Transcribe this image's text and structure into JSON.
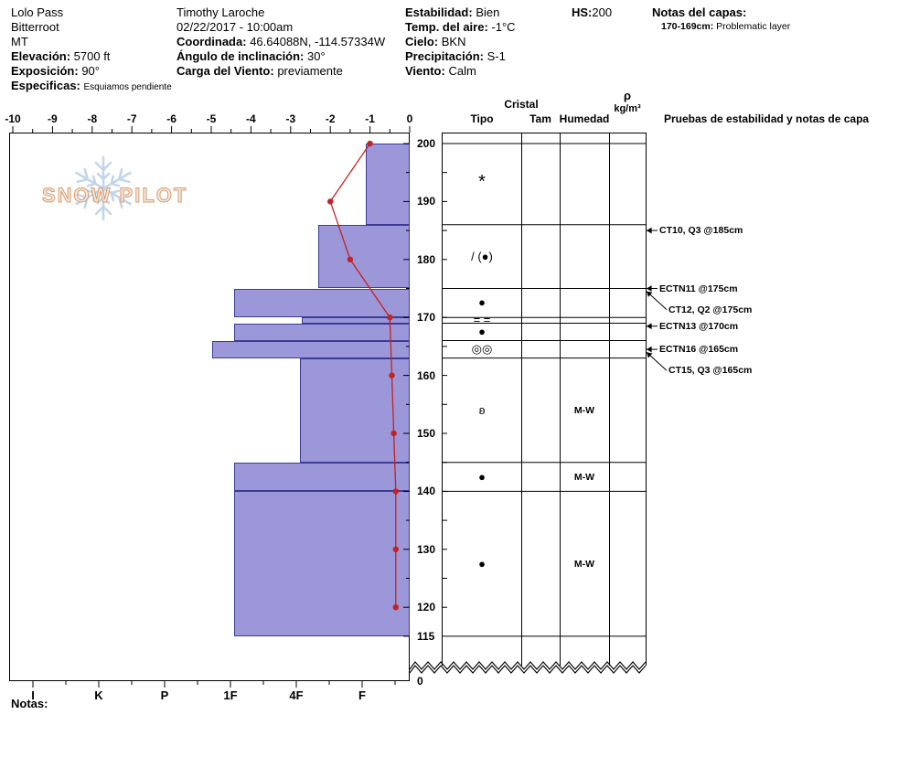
{
  "watermark": "SNOW PILOT",
  "notes_label": "Notas:",
  "header": {
    "site": {
      "name": "Lolo Pass",
      "range": "Bitterroot",
      "state": "MT"
    },
    "elevation": {
      "label": "Elevación:",
      "value": "5700 ft"
    },
    "aspect": {
      "label": "Exposición:",
      "value": "90°"
    },
    "specifics": {
      "label": "Especificas:",
      "value": "Esquiamos pendiente"
    },
    "observer": {
      "name": "Timothy Laroche",
      "datetime": "02/22/2017 - 10:00am"
    },
    "coordinates": {
      "label": "Coordinada:",
      "value": "46.64088N, -114.57334W"
    },
    "slope_angle": {
      "label": "Ángulo de inclinación:",
      "value": "30°"
    },
    "wind_loading": {
      "label": "Carga del Viento:",
      "value": "previamente"
    },
    "stability": {
      "label": "Estabilidad:",
      "value": "Bien"
    },
    "air_temp": {
      "label": "Temp. del aire:",
      "value": "-1°C"
    },
    "sky": {
      "label": "Cielo:",
      "value": "BKN"
    },
    "precip": {
      "label": "Precipitación:",
      "value": "S-1"
    },
    "wind": {
      "label": "Viento:",
      "value": "Calm"
    },
    "hs": {
      "label": "HS:",
      "value": "200"
    },
    "layer_notes": {
      "label": "Notas del capas:",
      "entry_label": "170-169cm:",
      "entry_text": "Problematic layer"
    }
  },
  "columns": {
    "cristal": "Cristal",
    "tipo": "Tipo",
    "tam": "Tam",
    "humedad": "Humedad",
    "rho": "ρ",
    "rho_units": "kg/m³",
    "tests_header": "Pruebas de estabilidad y notas de capa"
  },
  "colors": {
    "layer_fill": "#9b97d8",
    "layer_border": "#3c3c96",
    "temp_line": "#c52222",
    "watermark_blue": "#bdd2e6",
    "watermark_text_fill": "#e9e9e9",
    "watermark_text_outline": "#e2955a"
  },
  "chart_data": [
    {
      "type": "bar",
      "orientation": "horizontal",
      "xlabel_categories": [
        "I",
        "K",
        "P",
        "1F",
        "4F",
        "F"
      ],
      "depth_axis_labels": [
        200,
        190,
        180,
        170,
        160,
        150,
        140,
        130,
        120,
        115
      ],
      "depth_bottom_label": "0",
      "ylim": [
        115,
        200
      ],
      "total_snow_height_cm": 200,
      "layers": [
        {
          "top_cm": 200,
          "bottom_cm": 186,
          "hardness": "F",
          "hardness_index": 0.94
        },
        {
          "top_cm": 186,
          "bottom_cm": 175,
          "hardness": "4F-F",
          "hardness_index": 1.67
        },
        {
          "top_cm": 175,
          "bottom_cm": 170,
          "hardness": "1F",
          "hardness_index": 2.94
        },
        {
          "top_cm": 170,
          "bottom_cm": 169,
          "hardness": "4F",
          "hardness_index": 1.92
        },
        {
          "top_cm": 169,
          "bottom_cm": 166,
          "hardness": "1F",
          "hardness_index": 2.94
        },
        {
          "top_cm": 166,
          "bottom_cm": 163,
          "hardness": "1F+",
          "hardness_index": 3.28
        },
        {
          "top_cm": 163,
          "bottom_cm": 145,
          "hardness": "4F",
          "hardness_index": 1.94
        },
        {
          "top_cm": 145,
          "bottom_cm": 140,
          "hardness": "1F",
          "hardness_index": 2.94
        },
        {
          "top_cm": 140,
          "bottom_cm": 115,
          "hardness": "1F",
          "hardness_index": 2.94
        }
      ],
      "annotations": [
        {
          "label": "CT10, Q3 @185cm",
          "arrow_depth_cm": 185,
          "text_dy": 0
        },
        {
          "label": "ECTN11 @175cm",
          "arrow_depth_cm": 175,
          "text_dy": 0
        },
        {
          "label": "CT12, Q2 @175cm",
          "arrow_depth_cm": 174.5,
          "text_dy": 20
        },
        {
          "label": "ECTN13 @170cm",
          "arrow_depth_cm": 168.5,
          "text_dy": 0
        },
        {
          "label": "ECTN16 @165cm",
          "arrow_depth_cm": 164.5,
          "text_dy": 0
        },
        {
          "label": "CT15, Q3 @165cm",
          "arrow_depth_cm": 164,
          "text_dy": 20
        }
      ]
    },
    {
      "type": "line",
      "xlabel_ticks": [
        -10,
        -9,
        -8,
        -7,
        -6,
        -5,
        -4,
        -3,
        -2,
        -1,
        0
      ],
      "xlim": [
        -10,
        0
      ],
      "points": [
        {
          "temp_c": -1.0,
          "depth_cm": 200
        },
        {
          "temp_c": -2.0,
          "depth_cm": 190
        },
        {
          "temp_c": -1.5,
          "depth_cm": 180
        },
        {
          "temp_c": -0.5,
          "depth_cm": 170
        },
        {
          "temp_c": -0.45,
          "depth_cm": 160
        },
        {
          "temp_c": -0.4,
          "depth_cm": 150
        },
        {
          "temp_c": -0.35,
          "depth_cm": 140
        },
        {
          "temp_c": -0.35,
          "depth_cm": 130
        },
        {
          "temp_c": -0.35,
          "depth_cm": 120
        }
      ]
    },
    {
      "type": "table",
      "rows": [
        {
          "from_cm": 200,
          "to_cm": 186,
          "crystal_symbol": "*",
          "tam": "",
          "humidity": ""
        },
        {
          "from_cm": 186,
          "to_cm": 175,
          "crystal_symbol": "/ (●)",
          "tam": "",
          "humidity": ""
        },
        {
          "from_cm": 175,
          "to_cm": 170,
          "crystal_symbol": "●",
          "tam": "",
          "humidity": ""
        },
        {
          "from_cm": 170,
          "to_cm": 169,
          "crystal_symbol": "= =",
          "tam": "",
          "humidity": ""
        },
        {
          "from_cm": 169,
          "to_cm": 166,
          "crystal_symbol": "●",
          "tam": "",
          "humidity": ""
        },
        {
          "from_cm": 166,
          "to_cm": 163,
          "crystal_symbol": "◎◎",
          "tam": "",
          "humidity": ""
        },
        {
          "from_cm": 163,
          "to_cm": 145,
          "crystal_symbol": "ʚ",
          "tam": "",
          "humidity": "M-W"
        },
        {
          "from_cm": 145,
          "to_cm": 140,
          "crystal_symbol": "●",
          "tam": "",
          "humidity": "M-W"
        },
        {
          "from_cm": 140,
          "to_cm": 115,
          "crystal_symbol": "●",
          "tam": "",
          "humidity": "M-W"
        }
      ]
    }
  ]
}
